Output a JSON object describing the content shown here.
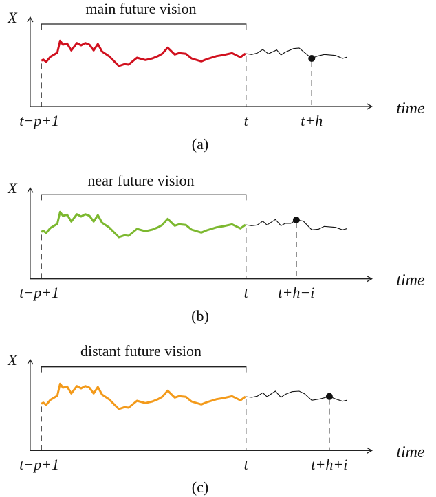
{
  "axis_labels": {
    "y": "X",
    "x": "time"
  },
  "start_label": "t−p+1",
  "present_label": "t",
  "panels": [
    {
      "title": "main future vision",
      "target_label": "t+h",
      "caption": "(a)",
      "history_color": "#d0101e"
    },
    {
      "title": "near future vision",
      "target_label": "t+h−i",
      "caption": "(b)",
      "history_color": "#7cb82f"
    },
    {
      "title": "distant future vision",
      "target_label": "t+h+i",
      "caption": "(c)",
      "history_color": "#f39a1a"
    }
  ]
}
